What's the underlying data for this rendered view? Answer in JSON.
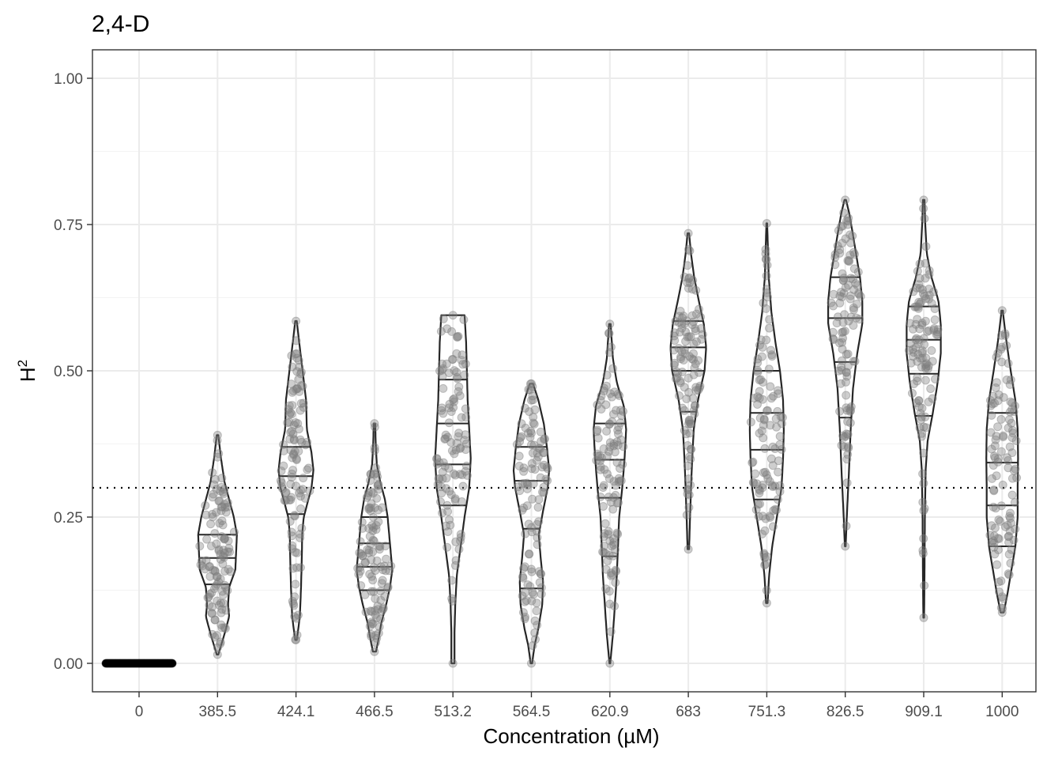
{
  "chart_data": {
    "type": "violin",
    "title": "2,4-D",
    "xlabel": "Concentration (µM)",
    "ylabel": "H",
    "ylabel_superscript": "2",
    "ylim": [
      -0.05,
      1.05
    ],
    "yticks": [
      "0.00",
      "0.25",
      "0.50",
      "0.75",
      "1.00"
    ],
    "reference_line": {
      "y": 0.3,
      "style": "dotted"
    },
    "grid": true,
    "categories": [
      "0",
      "385.5",
      "424.1",
      "466.5",
      "513.2",
      "564.5",
      "620.9",
      "683",
      "751.3",
      "826.5",
      "909.1",
      "1000"
    ],
    "groups": [
      {
        "category": "0",
        "min": 0.0,
        "max": 0.0,
        "quantiles": [
          0.0,
          0.0,
          0.0
        ],
        "profile": [
          [
            0,
            1
          ]
        ]
      },
      {
        "category": "385.5",
        "min": 0.015,
        "max": 0.39,
        "quantiles": [
          0.135,
          0.18,
          0.22
        ],
        "profile": [
          [
            0.015,
            0.02
          ],
          [
            0.05,
            0.18
          ],
          [
            0.08,
            0.3
          ],
          [
            0.1,
            0.27
          ],
          [
            0.13,
            0.3
          ],
          [
            0.16,
            0.46
          ],
          [
            0.19,
            0.48
          ],
          [
            0.22,
            0.5
          ],
          [
            0.25,
            0.42
          ],
          [
            0.28,
            0.3
          ],
          [
            0.31,
            0.18
          ],
          [
            0.35,
            0.09
          ],
          [
            0.39,
            0.02
          ]
        ]
      },
      {
        "category": "424.1",
        "min": 0.04,
        "max": 0.585,
        "quantiles": [
          0.255,
          0.32,
          0.37
        ],
        "profile": [
          [
            0.04,
            0.02
          ],
          [
            0.08,
            0.1
          ],
          [
            0.13,
            0.13
          ],
          [
            0.18,
            0.15
          ],
          [
            0.22,
            0.16
          ],
          [
            0.25,
            0.2
          ],
          [
            0.3,
            0.4
          ],
          [
            0.33,
            0.45
          ],
          [
            0.36,
            0.4
          ],
          [
            0.4,
            0.28
          ],
          [
            0.45,
            0.26
          ],
          [
            0.5,
            0.17
          ],
          [
            0.55,
            0.08
          ],
          [
            0.585,
            0.02
          ]
        ]
      },
      {
        "category": "466.5",
        "min": 0.02,
        "max": 0.41,
        "quantiles": [
          0.125,
          0.165,
          0.205,
          0.25
        ],
        "profile": [
          [
            0.02,
            0.04
          ],
          [
            0.04,
            0.1
          ],
          [
            0.07,
            0.18
          ],
          [
            0.1,
            0.3
          ],
          [
            0.13,
            0.4
          ],
          [
            0.16,
            0.46
          ],
          [
            0.19,
            0.42
          ],
          [
            0.22,
            0.38
          ],
          [
            0.25,
            0.34
          ],
          [
            0.28,
            0.27
          ],
          [
            0.31,
            0.15
          ],
          [
            0.34,
            0.06
          ],
          [
            0.38,
            0.03
          ],
          [
            0.41,
            0.02
          ]
        ]
      },
      {
        "category": "513.2",
        "min": 0.0,
        "max": 0.595,
        "quantiles": [
          0.27,
          0.34,
          0.41,
          0.485
        ],
        "profile": [
          [
            0.0,
            0.04
          ],
          [
            0.05,
            0.04
          ],
          [
            0.1,
            0.06
          ],
          [
            0.15,
            0.1
          ],
          [
            0.2,
            0.2
          ],
          [
            0.25,
            0.3
          ],
          [
            0.3,
            0.42
          ],
          [
            0.35,
            0.46
          ],
          [
            0.4,
            0.42
          ],
          [
            0.45,
            0.38
          ],
          [
            0.5,
            0.36
          ],
          [
            0.55,
            0.34
          ],
          [
            0.595,
            0.3
          ]
        ]
      },
      {
        "category": "564.5",
        "min": 0.0,
        "max": 0.478,
        "quantiles": [
          0.128,
          0.23,
          0.312,
          0.37
        ],
        "profile": [
          [
            0.0,
            0.02
          ],
          [
            0.03,
            0.08
          ],
          [
            0.06,
            0.18
          ],
          [
            0.1,
            0.28
          ],
          [
            0.14,
            0.3
          ],
          [
            0.18,
            0.24
          ],
          [
            0.22,
            0.19
          ],
          [
            0.26,
            0.3
          ],
          [
            0.3,
            0.42
          ],
          [
            0.33,
            0.46
          ],
          [
            0.37,
            0.4
          ],
          [
            0.41,
            0.32
          ],
          [
            0.45,
            0.18
          ],
          [
            0.478,
            0.04
          ]
        ]
      },
      {
        "category": "620.9",
        "min": 0.0,
        "max": 0.58,
        "quantiles": [
          0.183,
          0.283,
          0.348,
          0.41
        ],
        "profile": [
          [
            0.0,
            0.01
          ],
          [
            0.05,
            0.08
          ],
          [
            0.1,
            0.13
          ],
          [
            0.15,
            0.18
          ],
          [
            0.2,
            0.21
          ],
          [
            0.25,
            0.24
          ],
          [
            0.3,
            0.32
          ],
          [
            0.35,
            0.38
          ],
          [
            0.4,
            0.42
          ],
          [
            0.44,
            0.36
          ],
          [
            0.48,
            0.18
          ],
          [
            0.52,
            0.08
          ],
          [
            0.58,
            0.02
          ]
        ]
      },
      {
        "category": "683",
        "min": 0.195,
        "max": 0.735,
        "quantiles": [
          0.43,
          0.5,
          0.54,
          0.585
        ],
        "profile": [
          [
            0.195,
            0.02
          ],
          [
            0.24,
            0.04
          ],
          [
            0.3,
            0.07
          ],
          [
            0.35,
            0.1
          ],
          [
            0.4,
            0.14
          ],
          [
            0.45,
            0.25
          ],
          [
            0.5,
            0.42
          ],
          [
            0.54,
            0.46
          ],
          [
            0.58,
            0.4
          ],
          [
            0.62,
            0.27
          ],
          [
            0.66,
            0.15
          ],
          [
            0.7,
            0.07
          ],
          [
            0.735,
            0.02
          ]
        ]
      },
      {
        "category": "751.3",
        "min": 0.103,
        "max": 0.752,
        "quantiles": [
          0.28,
          0.365,
          0.428,
          0.5
        ],
        "profile": [
          [
            0.103,
            0.02
          ],
          [
            0.15,
            0.06
          ],
          [
            0.2,
            0.14
          ],
          [
            0.25,
            0.26
          ],
          [
            0.3,
            0.38
          ],
          [
            0.35,
            0.42
          ],
          [
            0.4,
            0.44
          ],
          [
            0.45,
            0.42
          ],
          [
            0.5,
            0.34
          ],
          [
            0.55,
            0.22
          ],
          [
            0.6,
            0.12
          ],
          [
            0.66,
            0.05
          ],
          [
            0.752,
            0.01
          ]
        ]
      },
      {
        "category": "826.5",
        "min": 0.2,
        "max": 0.792,
        "quantiles": [
          0.42,
          0.515,
          0.59,
          0.66
        ],
        "profile": [
          [
            0.2,
            0.01
          ],
          [
            0.25,
            0.04
          ],
          [
            0.32,
            0.09
          ],
          [
            0.4,
            0.14
          ],
          [
            0.47,
            0.2
          ],
          [
            0.53,
            0.31
          ],
          [
            0.58,
            0.44
          ],
          [
            0.62,
            0.44
          ],
          [
            0.66,
            0.38
          ],
          [
            0.7,
            0.28
          ],
          [
            0.74,
            0.18
          ],
          [
            0.77,
            0.1
          ],
          [
            0.792,
            0.02
          ]
        ]
      },
      {
        "category": "909.1",
        "min": 0.078,
        "max": 0.792,
        "quantiles": [
          0.423,
          0.495,
          0.553,
          0.61
        ],
        "profile": [
          [
            0.078,
            0.01
          ],
          [
            0.15,
            0.02
          ],
          [
            0.25,
            0.03
          ],
          [
            0.33,
            0.05
          ],
          [
            0.38,
            0.1
          ],
          [
            0.43,
            0.24
          ],
          [
            0.48,
            0.36
          ],
          [
            0.53,
            0.44
          ],
          [
            0.58,
            0.44
          ],
          [
            0.62,
            0.38
          ],
          [
            0.66,
            0.2
          ],
          [
            0.7,
            0.08
          ],
          [
            0.75,
            0.04
          ],
          [
            0.792,
            0.02
          ]
        ]
      },
      {
        "category": "1000",
        "min": 0.087,
        "max": 0.603,
        "quantiles": [
          0.2,
          0.27,
          0.343,
          0.428
        ],
        "profile": [
          [
            0.087,
            0.04
          ],
          [
            0.12,
            0.14
          ],
          [
            0.16,
            0.24
          ],
          [
            0.2,
            0.34
          ],
          [
            0.25,
            0.4
          ],
          [
            0.3,
            0.4
          ],
          [
            0.35,
            0.41
          ],
          [
            0.4,
            0.4
          ],
          [
            0.45,
            0.34
          ],
          [
            0.5,
            0.22
          ],
          [
            0.55,
            0.11
          ],
          [
            0.6,
            0.02
          ]
        ]
      }
    ]
  }
}
